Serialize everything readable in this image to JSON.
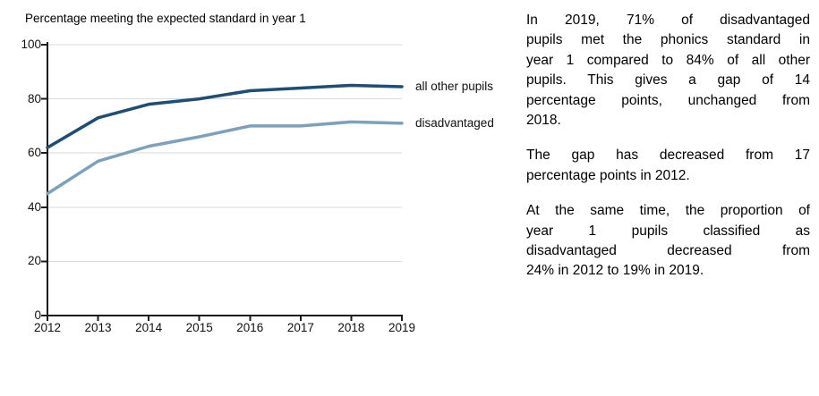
{
  "chart_data": {
    "type": "line",
    "title": "Percentage meeting the expected standard in year 1",
    "categories": [
      "2012",
      "2013",
      "2014",
      "2015",
      "2016",
      "2017",
      "2018",
      "2019"
    ],
    "series": [
      {
        "name": "all other pupils",
        "color": "#1e4e75",
        "values": [
          62,
          73,
          78,
          80,
          83,
          84,
          85,
          84.5
        ]
      },
      {
        "name": "disadvantaged",
        "color": "#7da1bb",
        "values": [
          45,
          57,
          62.5,
          66,
          70,
          70,
          71.5,
          71
        ]
      }
    ],
    "xlabel": "",
    "ylabel": "",
    "ylim": [
      0,
      100
    ],
    "y_ticks": [
      0,
      20,
      40,
      60,
      80,
      100
    ],
    "grid": "horizontal",
    "legend_position": "labels-at-line-ends-right"
  },
  "commentary": {
    "paragraphs": [
      {
        "lines": [
          "In 2019, 71% of disadvantaged",
          "pupils met the phonics standard in",
          "year 1 compared to 84% of all other",
          "pupils. This gives a gap of 14",
          "percentage points, unchanged from",
          "2018."
        ]
      },
      {
        "lines": [
          "The gap has decreased from 17",
          "percentage points in 2012."
        ]
      },
      {
        "lines": [
          "At the same time, the proportion of",
          "year 1 pupils classified as",
          "disadvantaged decreased from",
          "24% in 2012 to 19% in 2019."
        ]
      }
    ]
  }
}
